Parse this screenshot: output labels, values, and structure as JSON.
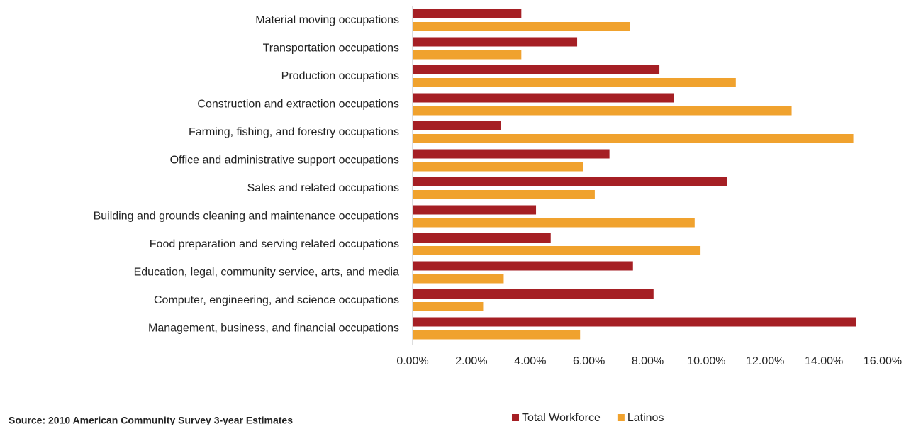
{
  "chart_data": {
    "type": "hbar",
    "source": "Source: 2010 American Community Survey 3-year Estimates",
    "categories": [
      "Material moving occupations",
      "Transportation occupations",
      "Production occupations",
      "Construction and extraction occupations",
      "Farming, fishing, and forestry occupations",
      "Office and administrative support occupations",
      "Sales and related occupations",
      "Building and grounds cleaning and maintenance occupations",
      "Food preparation and serving related occupations",
      "Education, legal, community service, arts, and media",
      "Computer, engineering, and science occupations",
      "Management, business, and financial occupations"
    ],
    "series": [
      {
        "name": "Total Workforce",
        "color": "#a51f24",
        "values": [
          3.7,
          5.6,
          8.4,
          8.9,
          3.0,
          6.7,
          10.7,
          4.2,
          4.7,
          7.5,
          8.2,
          15.1
        ]
      },
      {
        "name": "Latinos",
        "color": "#f0a22e",
        "values": [
          7.4,
          3.7,
          11.0,
          12.9,
          15.0,
          5.8,
          6.2,
          9.6,
          9.8,
          3.1,
          2.4,
          5.7
        ]
      }
    ],
    "xlim": [
      0,
      16
    ],
    "xticks": [
      {
        "value": 0,
        "label": "0.00%"
      },
      {
        "value": 2,
        "label": "2.00%"
      },
      {
        "value": 4,
        "label": "4.00%"
      },
      {
        "value": 6,
        "label": "6.00%"
      },
      {
        "value": 8,
        "label": "8.00%"
      },
      {
        "value": 10,
        "label": "10.00%"
      },
      {
        "value": 12,
        "label": "12.00%"
      },
      {
        "value": 14,
        "label": "14.00%"
      },
      {
        "value": 16,
        "label": "16.00%"
      }
    ],
    "legend": "bottom-right"
  }
}
